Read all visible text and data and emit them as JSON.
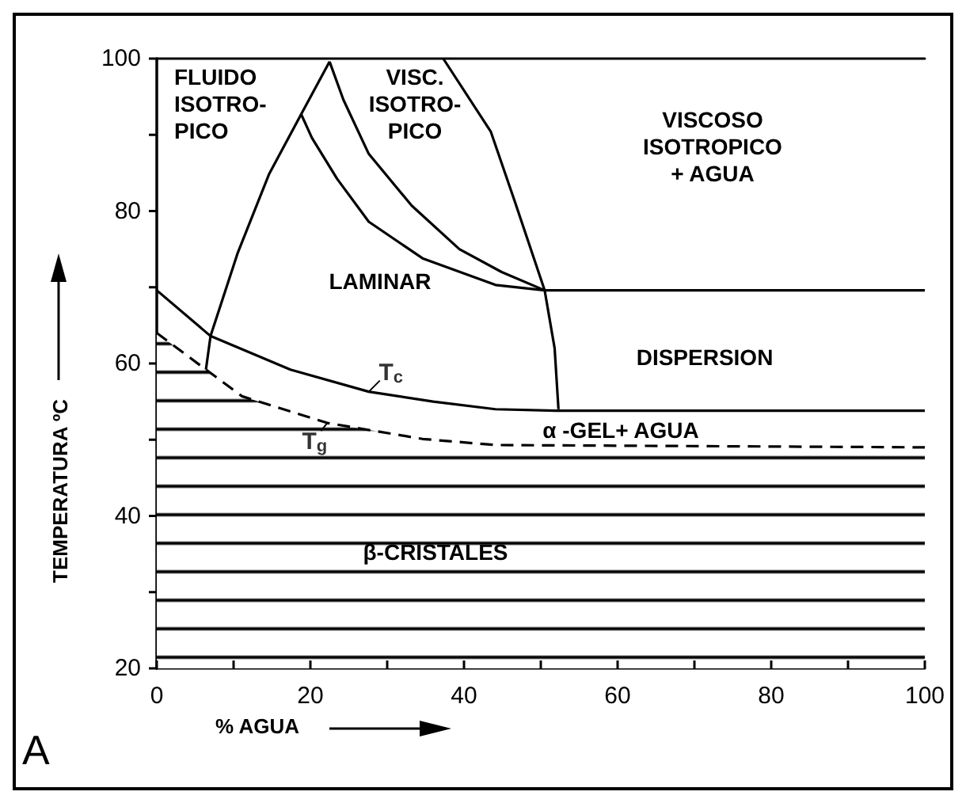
{
  "chart_data": {
    "type": "line",
    "xlabel": "% AGUA",
    "ylabel": "TEMPERATURA ºC",
    "xlim": [
      0,
      100
    ],
    "ylim": [
      20,
      100
    ],
    "xticks": [
      0,
      {
        "value": 10,
        "label": null
      },
      20,
      {
        "value": 30,
        "label": null
      },
      40,
      {
        "value": 50,
        "label": null
      },
      60,
      {
        "value": 70,
        "label": null
      },
      80,
      {
        "value": 90,
        "label": null
      },
      100
    ],
    "yticks": [
      20,
      {
        "value": 30,
        "label": null
      },
      40,
      {
        "value": 50,
        "label": null
      },
      60,
      {
        "value": 70,
        "label": null
      },
      80,
      {
        "value": 90,
        "label": null
      },
      100
    ],
    "grid": false,
    "marker": "none",
    "series": [
      {
        "color": "#000000",
        "x": [
          0,
          7,
          17.4,
          27.6,
          36,
          44.1,
          52,
          100
        ],
        "values": [
          69.6,
          63.6,
          59.2,
          56.3,
          55,
          54,
          53.8,
          53.8
        ]
      },
      {
        "type": "area",
        "color": "#000000",
        "line_style": "dashed",
        "x": [
          0,
          6.4,
          11.1,
          22.2,
          34.6,
          44.1,
          100
        ],
        "values": [
          64,
          59.2,
          55.7,
          52.2,
          50.1,
          49.3,
          49
        ]
      },
      {
        "color": "#000000",
        "x": [
          6.4,
          7,
          10.5,
          14.6,
          18.8,
          22.5
        ],
        "values": [
          59.2,
          63.6,
          74.4,
          84.8,
          92.7,
          99.6
        ]
      },
      {
        "color": "#000000",
        "x": [
          22.5,
          24.3,
          27.6,
          33.2,
          39.4,
          44.9,
          50.5
        ],
        "values": [
          99.6,
          94.6,
          87.5,
          80.7,
          75,
          72,
          69.6
        ]
      },
      {
        "color": "#000000",
        "x": [
          18.8,
          20.2,
          23.5,
          27.6,
          34.6,
          44.1,
          50.5
        ],
        "values": [
          92.7,
          89.6,
          84.2,
          78.6,
          73.8,
          70.3,
          69.6
        ]
      },
      {
        "color": "#000000",
        "x": [
          37.3,
          43.5,
          46.6,
          50.5,
          100
        ],
        "values": [
          100,
          90.4,
          81.3,
          69.6,
          69.6
        ]
      },
      {
        "color": "#000000",
        "x": [
          50.5,
          51.8,
          52.3
        ],
        "values": [
          69.6,
          62,
          54
        ]
      }
    ],
    "annotations": [
      "FLUIDO\nISOTRO-\nPICO",
      "VISC.\nISOTRO-\nPICO",
      "VISCOSO\nISOTROPICO\n+ AGUA",
      "LAMINAR",
      "DISPERSION",
      {
        "text": "T$_{c}$",
        "x": 27.6,
        "y": 56.3
      },
      {
        "text": "T$_{g}$",
        "x": 22.2,
        "y": 52.2
      },
      "α -GEL+ AGUA",
      "β-CRISTALES",
      "A"
    ]
  }
}
